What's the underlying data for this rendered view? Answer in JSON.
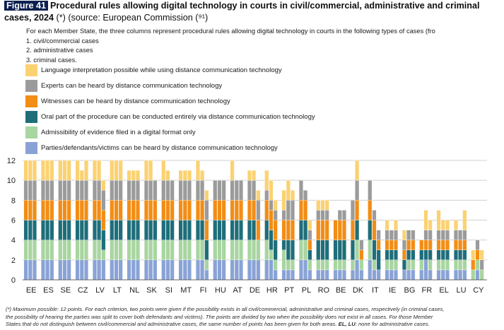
{
  "figure": {
    "badge": "Figure 41",
    "title_bold": "Procedural rules allowing digital technology in courts in civil/commercial, administrative and criminal cases, 2024",
    "title_rest": " (*) (source: European Commission (⁹¹)"
  },
  "description": {
    "intro": "For each Member State, the three columns represent procedural rules allowing digital technology in courts in the following types of cases (fro",
    "items": [
      "1. civil/commercial cases",
      "2. administrative cases",
      "3. criminal cases."
    ]
  },
  "legend": [
    {
      "label": "Language interpretation possible while using distance communication technology",
      "color": "#fbd272"
    },
    {
      "label": "Experts can be heard by distance communication technology",
      "color": "#9b9b9b"
    },
    {
      "label": "Witnesses can be heard by distance communication technology",
      "color": "#f28d15"
    },
    {
      "label": "Oral part of the procedure can be conducted entirely via distance communication technology",
      "color": "#1e6e7a"
    },
    {
      "label": "Admissibility of evidence filed in a digital format only",
      "color": "#a8d5a0"
    },
    {
      "label": "Parties/defendants/victims can be heard by distance communication technology",
      "color": "#8aa3d6"
    }
  ],
  "chart_data": {
    "type": "bar",
    "stacked": true,
    "ylim": [
      0,
      12
    ],
    "yticks": [
      0,
      2,
      4,
      6,
      8,
      10,
      12
    ],
    "series_order": [
      "Parties/defendants/victims",
      "Admissibility of evidence",
      "Oral part of procedure",
      "Witnesses",
      "Experts",
      "Language interpretation"
    ],
    "series_colors": [
      "#8aa3d6",
      "#a8d5a0",
      "#1e6e7a",
      "#f28d15",
      "#9b9b9b",
      "#fbd272"
    ],
    "groups": [
      {
        "label": "EE",
        "columns": [
          [
            2,
            2,
            2,
            2,
            2,
            2
          ],
          [
            2,
            2,
            2,
            2,
            2,
            2
          ],
          [
            2,
            2,
            2,
            2,
            2,
            2
          ]
        ]
      },
      {
        "label": "ES",
        "columns": [
          [
            2,
            2,
            2,
            2,
            2,
            2
          ],
          [
            2,
            2,
            2,
            2,
            2,
            2
          ],
          [
            2,
            2,
            2,
            2,
            2,
            2
          ]
        ]
      },
      {
        "label": "SE",
        "columns": [
          [
            2,
            2,
            2,
            2,
            2,
            2
          ],
          [
            2,
            2,
            2,
            2,
            2,
            2
          ],
          [
            2,
            2,
            2,
            2,
            2,
            2
          ]
        ]
      },
      {
        "label": "CZ",
        "columns": [
          [
            2,
            2,
            2,
            2,
            2,
            2
          ],
          [
            2,
            2,
            2,
            2,
            2,
            1
          ],
          [
            2,
            2,
            2,
            2,
            2,
            2
          ]
        ]
      },
      {
        "label": "LV",
        "columns": [
          [
            2,
            2,
            2,
            2,
            2,
            2
          ],
          [
            2,
            2,
            2,
            2,
            2,
            2
          ],
          [
            2,
            1,
            2,
            2,
            2,
            1
          ]
        ]
      },
      {
        "label": "LT",
        "columns": [
          [
            2,
            2,
            2,
            2,
            2,
            2
          ],
          [
            2,
            2,
            2,
            2,
            2,
            2
          ],
          [
            2,
            2,
            2,
            2,
            2,
            2
          ]
        ]
      },
      {
        "label": "NL",
        "columns": [
          [
            2,
            2,
            2,
            2,
            2,
            1
          ],
          [
            2,
            2,
            2,
            2,
            2,
            1
          ],
          [
            2,
            2,
            2,
            2,
            2,
            1
          ]
        ]
      },
      {
        "label": "SK",
        "columns": [
          [
            2,
            2,
            2,
            2,
            2,
            2
          ],
          [
            2,
            2,
            2,
            2,
            2,
            2
          ],
          [
            2,
            2,
            2,
            2,
            2,
            0
          ]
        ]
      },
      {
        "label": "SI",
        "columns": [
          [
            2,
            2,
            2,
            2,
            2,
            2
          ],
          [
            2,
            2,
            2,
            2,
            2,
            1
          ],
          [
            2,
            2,
            2,
            2,
            2,
            0
          ]
        ]
      },
      {
        "label": "MT",
        "columns": [
          [
            2,
            2,
            2,
            2,
            2,
            1
          ],
          [
            2,
            2,
            2,
            2,
            2,
            1
          ],
          [
            2,
            2,
            2,
            2,
            2,
            1
          ]
        ]
      },
      {
        "label": "FI",
        "columns": [
          [
            2,
            2,
            2,
            2,
            2,
            2
          ],
          [
            2,
            2,
            2,
            2,
            2,
            1
          ],
          [
            1,
            1,
            2,
            2,
            2,
            1
          ]
        ]
      },
      {
        "label": "HU",
        "columns": [
          [
            2,
            2,
            2,
            2,
            2,
            0
          ],
          [
            2,
            2,
            2,
            2,
            2,
            0
          ],
          [
            2,
            2,
            2,
            2,
            2,
            0
          ]
        ]
      },
      {
        "label": "AT",
        "columns": [
          [
            2,
            2,
            2,
            2,
            2,
            2
          ],
          [
            2,
            2,
            2,
            2,
            2,
            0
          ],
          [
            2,
            2,
            2,
            2,
            2,
            0
          ]
        ]
      },
      {
        "label": "DE",
        "columns": [
          [
            2,
            2,
            2,
            2,
            2,
            1
          ],
          [
            2,
            2,
            2,
            2,
            2,
            1
          ],
          [
            2,
            2,
            0,
            2,
            2,
            1
          ]
        ]
      },
      {
        "label": "HR",
        "columns": [
          [
            2,
            2,
            2,
            2,
            1,
            2
          ],
          [
            2,
            1,
            2,
            2,
            1,
            2
          ],
          [
            1,
            1,
            2,
            2,
            1,
            1
          ]
        ]
      },
      {
        "label": "PT",
        "columns": [
          [
            1,
            2,
            1,
            2,
            1,
            2
          ],
          [
            1,
            1,
            2,
            2,
            2,
            2
          ],
          [
            1,
            1,
            2,
            2,
            2,
            1
          ]
        ]
      },
      {
        "label": "PL",
        "columns": [
          [
            2,
            2,
            2,
            2,
            2,
            0
          ],
          [
            2,
            2,
            2,
            2,
            1,
            0
          ],
          [
            1,
            1,
            1,
            1,
            1,
            1
          ]
        ]
      },
      {
        "label": "RO",
        "columns": [
          [
            1,
            1,
            2,
            2,
            1,
            1
          ],
          [
            1,
            1,
            2,
            2,
            1,
            1
          ],
          [
            1,
            1,
            2,
            2,
            1,
            1
          ]
        ]
      },
      {
        "label": "BE",
        "columns": [
          [
            1,
            1,
            2,
            2,
            0,
            0
          ],
          [
            1,
            1,
            2,
            2,
            1,
            0
          ],
          [
            1,
            1,
            2,
            2,
            1,
            0
          ]
        ]
      },
      {
        "label": "DK",
        "columns": [
          [
            1,
            1,
            2,
            2,
            2,
            0
          ],
          [
            2,
            2,
            2,
            2,
            2,
            2
          ],
          [
            1,
            1,
            0,
            1,
            1,
            0
          ]
        ]
      },
      {
        "label": "IT",
        "columns": [
          [
            2,
            2,
            2,
            2,
            2,
            0
          ],
          [
            1,
            1,
            2,
            2,
            1,
            0
          ],
          [
            1,
            0,
            2,
            1,
            1,
            0
          ]
        ]
      },
      {
        "label": "IE",
        "columns": [
          [
            1,
            1,
            1,
            1,
            1,
            1
          ],
          [
            1,
            1,
            1,
            1,
            1,
            0
          ],
          [
            1,
            1,
            1,
            1,
            1,
            1
          ]
        ]
      },
      {
        "label": "BG",
        "columns": [
          [
            1,
            0,
            1,
            1,
            1,
            1
          ],
          [
            1,
            1,
            1,
            1,
            1,
            0
          ],
          [
            1,
            1,
            1,
            1,
            1,
            0
          ]
        ]
      },
      {
        "label": "FR",
        "columns": [
          [
            1,
            1,
            1,
            1,
            0,
            0
          ],
          [
            2,
            0,
            1,
            1,
            1,
            2
          ],
          [
            1,
            1,
            1,
            1,
            1,
            1
          ]
        ]
      },
      {
        "label": "EL",
        "columns": [
          [
            1,
            1,
            1,
            1,
            1,
            2
          ],
          [
            1,
            1,
            1,
            1,
            1,
            1
          ],
          [
            1,
            1,
            1,
            1,
            1,
            1
          ]
        ]
      },
      {
        "label": "LU",
        "columns": [
          [
            1,
            1,
            1,
            1,
            1,
            1
          ],
          [
            1,
            1,
            1,
            1,
            1,
            0
          ],
          [
            1,
            1,
            1,
            1,
            1,
            2
          ]
        ]
      },
      {
        "label": "CY",
        "columns": [
          [
            0,
            1,
            0,
            1,
            0,
            1
          ],
          [
            1,
            1,
            0,
            1,
            1,
            0
          ],
          [
            0,
            1,
            0,
            0,
            1,
            1
          ]
        ]
      }
    ]
  },
  "footnote": {
    "line1": "(*) Maximum possible: 12 points. For each criterion, two points were given if the possibility exists in all civil/commercial, administrative and criminal cases, respectively (in criminal cases,",
    "line2": "the possibility of hearing the parties was split to cover both defendants and victims). The points are divided by two when the possibility does not exist in all cases. For those Member",
    "line3a": "States that do not distinguish between civil/commercial and administrative cases, the same number of points has been given for both areas.",
    "line3b": "EL, LU",
    "line3c": ": none for administrative cases."
  }
}
